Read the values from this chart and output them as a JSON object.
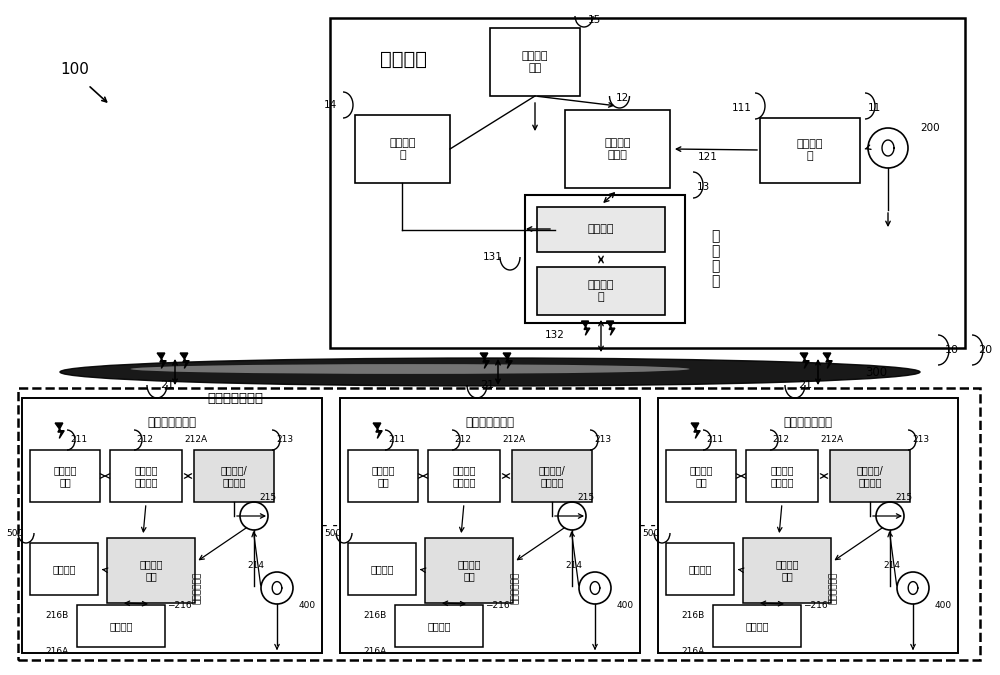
{
  "bg_color": "#ffffff",
  "control_center_label": "控制中心",
  "gps_label": "全球定位\n系统",
  "time_server_label": "时间服务\n器",
  "control_server_label": "控制中心\n服务器",
  "freq_detector_label": "频率侦测\n器",
  "comm_module_label": "通信模块",
  "modem_label": "调制解调\n器",
  "comm_interface_label": "通\n信\n界\n面",
  "unload_client_label": "卸载服务客户端",
  "load_station_label": "负载卸载控制站",
  "mobile_comm_label": "移动通信\n模块",
  "remote_ctrl_label": "远程监控\n站控制器",
  "digital_io_label": "数字输出/\n输入模块",
  "power_mgmt_label": "电源管理\n装置",
  "load_label": "用电负载",
  "storage_label": "储能设备",
  "backup_power_label": "备用电源装置"
}
